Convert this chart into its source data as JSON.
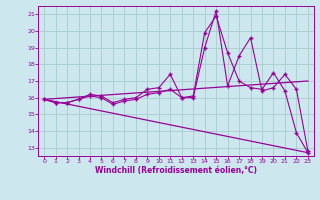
{
  "xlabel": "Windchill (Refroidissement éolien,°C)",
  "background_color": "#cce8ee",
  "grid_color": "#aacccc",
  "line_color": "#990099",
  "xlim": [
    -0.5,
    23.5
  ],
  "ylim": [
    12.5,
    21.5
  ],
  "yticks": [
    13,
    14,
    15,
    16,
    17,
    18,
    19,
    20,
    21
  ],
  "xticks": [
    0,
    1,
    2,
    3,
    4,
    5,
    6,
    7,
    8,
    9,
    10,
    11,
    12,
    13,
    14,
    15,
    16,
    17,
    18,
    19,
    20,
    21,
    22,
    23
  ],
  "series1_x": [
    0,
    1,
    2,
    3,
    4,
    5,
    6,
    7,
    8,
    9,
    10,
    11,
    12,
    13,
    14,
    15,
    16,
    17,
    18,
    19,
    20,
    21,
    22,
    23
  ],
  "series1_y": [
    15.9,
    15.7,
    15.7,
    15.9,
    16.2,
    16.1,
    15.7,
    15.9,
    16.0,
    16.5,
    16.6,
    17.4,
    16.0,
    16.0,
    19.0,
    21.2,
    16.7,
    18.5,
    19.6,
    16.4,
    16.6,
    17.4,
    16.5,
    12.8
  ],
  "series2_x": [
    0,
    1,
    2,
    3,
    4,
    5,
    6,
    7,
    8,
    9,
    10,
    11,
    12,
    13,
    14,
    15,
    16,
    17,
    18,
    19,
    20,
    21,
    22,
    23
  ],
  "series2_y": [
    15.9,
    15.7,
    15.7,
    15.9,
    16.1,
    16.0,
    15.6,
    15.8,
    15.9,
    16.2,
    16.3,
    16.5,
    16.0,
    16.1,
    19.9,
    20.9,
    18.7,
    17.0,
    16.6,
    16.5,
    17.5,
    16.4,
    13.9,
    12.7
  ],
  "series3_x": [
    0,
    23
  ],
  "series3_y": [
    15.9,
    17.0
  ],
  "series4_x": [
    0,
    23
  ],
  "series4_y": [
    15.9,
    12.7
  ]
}
